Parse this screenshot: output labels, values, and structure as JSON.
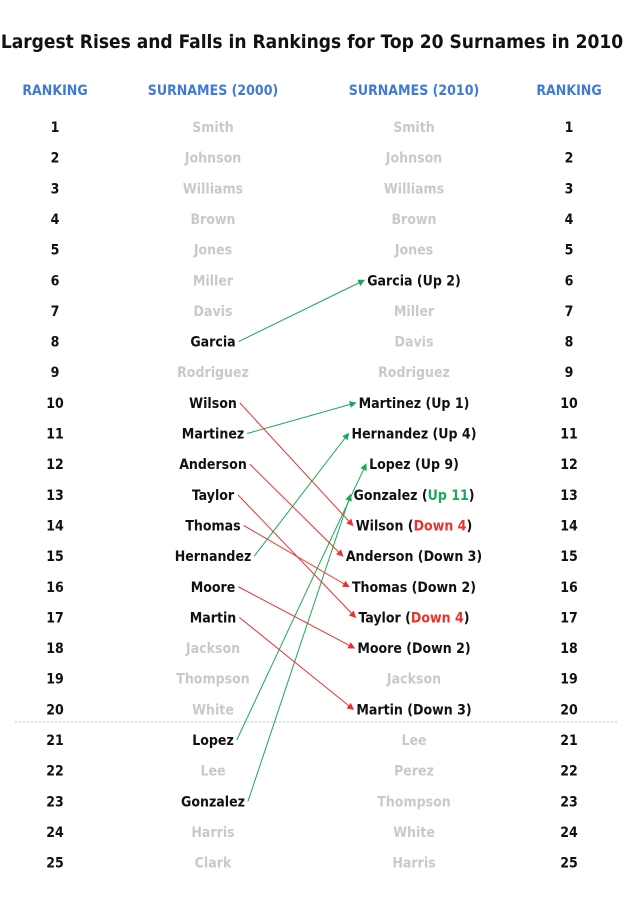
{
  "chart_data": {
    "type": "table",
    "title": "Largest Rises and Falls in Rankings for Top 20 Surnames in 2010",
    "headers": [
      "RANKING",
      "SURNAMES (2000)",
      "SURNAMES (2010)",
      "RANKING"
    ],
    "ranks": [
      "1",
      "2",
      "3",
      "4",
      "5",
      "6",
      "7",
      "8",
      "9",
      "10",
      "11",
      "12",
      "13",
      "14",
      "15",
      "16",
      "17",
      "18",
      "19",
      "20",
      "21",
      "22",
      "23",
      "24",
      "25"
    ],
    "surnames_2000": [
      {
        "rank": 1,
        "name": "Smith",
        "moved": false
      },
      {
        "rank": 2,
        "name": "Johnson",
        "moved": false
      },
      {
        "rank": 3,
        "name": "Williams",
        "moved": false
      },
      {
        "rank": 4,
        "name": "Brown",
        "moved": false
      },
      {
        "rank": 5,
        "name": "Jones",
        "moved": false
      },
      {
        "rank": 6,
        "name": "Miller",
        "moved": false
      },
      {
        "rank": 7,
        "name": "Davis",
        "moved": false
      },
      {
        "rank": 8,
        "name": "Garcia",
        "moved": true
      },
      {
        "rank": 9,
        "name": "Rodriguez",
        "moved": false
      },
      {
        "rank": 10,
        "name": "Wilson",
        "moved": true
      },
      {
        "rank": 11,
        "name": "Martinez",
        "moved": true
      },
      {
        "rank": 12,
        "name": "Anderson",
        "moved": true
      },
      {
        "rank": 13,
        "name": "Taylor",
        "moved": true
      },
      {
        "rank": 14,
        "name": "Thomas",
        "moved": true
      },
      {
        "rank": 15,
        "name": "Hernandez",
        "moved": true
      },
      {
        "rank": 16,
        "name": "Moore",
        "moved": true
      },
      {
        "rank": 17,
        "name": "Martin",
        "moved": true
      },
      {
        "rank": 18,
        "name": "Jackson",
        "moved": false
      },
      {
        "rank": 19,
        "name": "Thompson",
        "moved": false
      },
      {
        "rank": 20,
        "name": "White",
        "moved": false
      },
      {
        "rank": 21,
        "name": "Lopez",
        "moved": true
      },
      {
        "rank": 22,
        "name": "Lee",
        "moved": false
      },
      {
        "rank": 23,
        "name": "Gonzalez",
        "moved": true
      },
      {
        "rank": 24,
        "name": "Harris",
        "moved": false
      },
      {
        "rank": 25,
        "name": "Clark",
        "moved": false
      }
    ],
    "surnames_2010": [
      {
        "rank": 1,
        "parts": [
          {
            "text": "Smith",
            "style": "muted"
          }
        ]
      },
      {
        "rank": 2,
        "parts": [
          {
            "text": "Johnson",
            "style": "muted"
          }
        ]
      },
      {
        "rank": 3,
        "parts": [
          {
            "text": "Williams",
            "style": "muted"
          }
        ]
      },
      {
        "rank": 4,
        "parts": [
          {
            "text": "Brown",
            "style": "muted"
          }
        ]
      },
      {
        "rank": 5,
        "parts": [
          {
            "text": "Jones",
            "style": "muted"
          }
        ]
      },
      {
        "rank": 6,
        "parts": [
          {
            "text": "Garcia (Up 2)",
            "style": "active"
          }
        ]
      },
      {
        "rank": 7,
        "parts": [
          {
            "text": "Miller",
            "style": "muted"
          }
        ]
      },
      {
        "rank": 8,
        "parts": [
          {
            "text": "Davis",
            "style": "muted"
          }
        ]
      },
      {
        "rank": 9,
        "parts": [
          {
            "text": "Rodriguez",
            "style": "muted"
          }
        ]
      },
      {
        "rank": 10,
        "parts": [
          {
            "text": "Martinez (Up 1)",
            "style": "active"
          }
        ]
      },
      {
        "rank": 11,
        "parts": [
          {
            "text": "Hernandez (Up 4)",
            "style": "active"
          }
        ]
      },
      {
        "rank": 12,
        "parts": [
          {
            "text": "Lopez (Up 9)",
            "style": "active"
          }
        ]
      },
      {
        "rank": 13,
        "parts": [
          {
            "text": "Gonzalez (",
            "style": "active"
          },
          {
            "text": "Up 11",
            "style": "up"
          },
          {
            "text": ")",
            "style": "active"
          }
        ]
      },
      {
        "rank": 14,
        "parts": [
          {
            "text": "Wilson (",
            "style": "active"
          },
          {
            "text": "Down 4",
            "style": "down"
          },
          {
            "text": ")",
            "style": "active"
          }
        ]
      },
      {
        "rank": 15,
        "parts": [
          {
            "text": "Anderson (Down 3)",
            "style": "active"
          }
        ]
      },
      {
        "rank": 16,
        "parts": [
          {
            "text": "Thomas (Down 2)",
            "style": "active"
          }
        ]
      },
      {
        "rank": 17,
        "parts": [
          {
            "text": "Taylor (",
            "style": "active"
          },
          {
            "text": "Down 4",
            "style": "down"
          },
          {
            "text": ")",
            "style": "active"
          }
        ]
      },
      {
        "rank": 18,
        "parts": [
          {
            "text": "Moore (Down 2)",
            "style": "active"
          }
        ]
      },
      {
        "rank": 19,
        "parts": [
          {
            "text": "Jackson",
            "style": "muted"
          }
        ]
      },
      {
        "rank": 20,
        "parts": [
          {
            "text": "Martin (Down 3)",
            "style": "active"
          }
        ]
      },
      {
        "rank": 21,
        "parts": [
          {
            "text": "Lee",
            "style": "muted"
          }
        ]
      },
      {
        "rank": 22,
        "parts": [
          {
            "text": "Perez",
            "style": "muted"
          }
        ]
      },
      {
        "rank": 23,
        "parts": [
          {
            "text": "Thompson",
            "style": "muted"
          }
        ]
      },
      {
        "rank": 24,
        "parts": [
          {
            "text": "White",
            "style": "muted"
          }
        ]
      },
      {
        "rank": 25,
        "parts": [
          {
            "text": "Harris",
            "style": "muted"
          }
        ]
      }
    ],
    "movements": [
      {
        "name": "Garcia",
        "from": 8,
        "to": 6,
        "change": 2,
        "direction": "up"
      },
      {
        "name": "Martinez",
        "from": 11,
        "to": 10,
        "change": 1,
        "direction": "up"
      },
      {
        "name": "Hernandez",
        "from": 15,
        "to": 11,
        "change": 4,
        "direction": "up"
      },
      {
        "name": "Lopez",
        "from": 21,
        "to": 12,
        "change": 9,
        "direction": "up"
      },
      {
        "name": "Gonzalez",
        "from": 23,
        "to": 13,
        "change": 11,
        "direction": "up"
      },
      {
        "name": "Wilson",
        "from": 10,
        "to": 14,
        "change": 4,
        "direction": "down"
      },
      {
        "name": "Anderson",
        "from": 12,
        "to": 15,
        "change": 3,
        "direction": "down"
      },
      {
        "name": "Taylor",
        "from": 13,
        "to": 17,
        "change": 4,
        "direction": "down"
      },
      {
        "name": "Thomas",
        "from": 14,
        "to": 16,
        "change": 2,
        "direction": "down"
      },
      {
        "name": "Moore",
        "from": 16,
        "to": 18,
        "change": 2,
        "direction": "down"
      },
      {
        "name": "Martin",
        "from": 17,
        "to": 20,
        "change": 3,
        "direction": "down"
      }
    ],
    "top_cutoff_rank": 20,
    "colors": {
      "header": "#3f7ad6",
      "up": "#1aaa55",
      "down": "#e8322d",
      "muted": "#c9c9c9",
      "text": "#111111",
      "divider": "#bdbdbd"
    }
  }
}
